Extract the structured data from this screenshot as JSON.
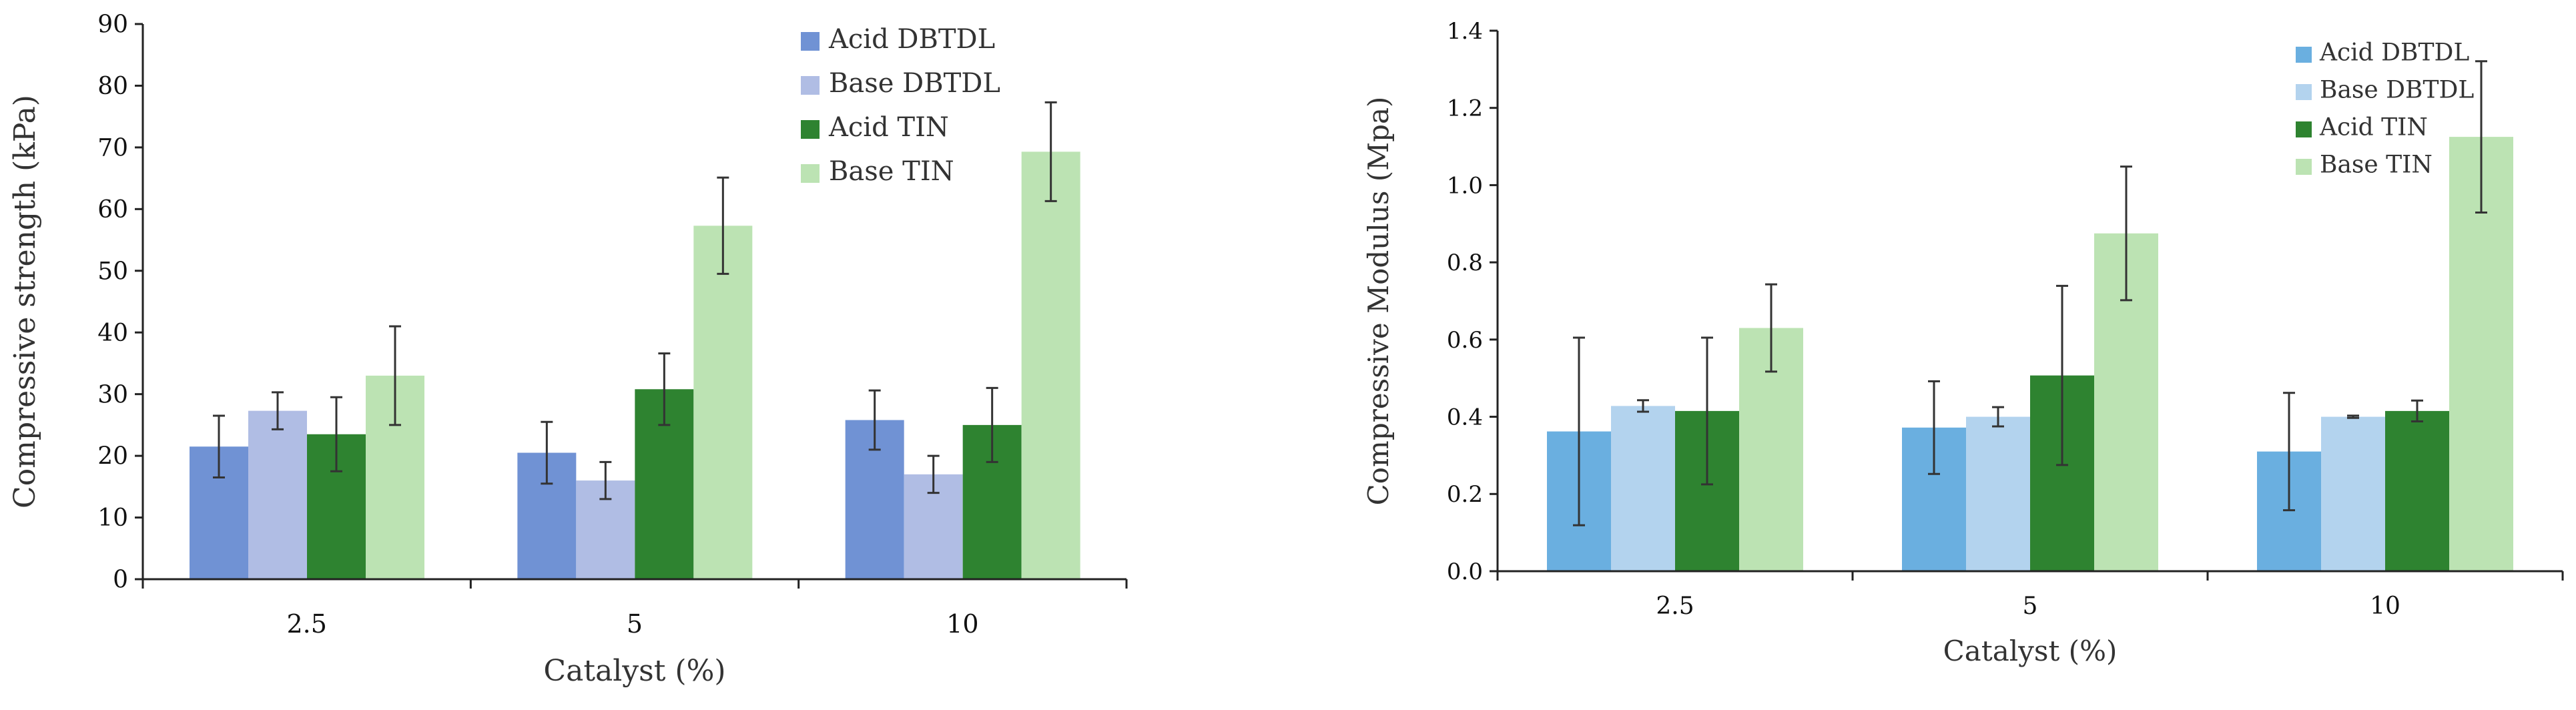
{
  "chart_data": [
    {
      "type": "bar",
      "title": "",
      "xlabel": "Catalyst (%)",
      "ylabel": "Compressive strength (kPa)",
      "categories": [
        "2.5",
        "5",
        "10"
      ],
      "ylim": [
        0,
        90
      ],
      "yticks": [
        0,
        10,
        20,
        30,
        40,
        50,
        60,
        70,
        80,
        90
      ],
      "ytick_labels": [
        "0",
        "10",
        "20",
        "30",
        "40",
        "50",
        "60",
        "70",
        "80",
        "90"
      ],
      "grid": false,
      "legend_position": "top-right",
      "series": [
        {
          "name": "Acid DBTDL",
          "color": "#7092d4",
          "values": [
            21.5,
            20.5,
            25.8
          ],
          "errors": [
            5.0,
            5.0,
            4.8
          ]
        },
        {
          "name": "Base DBTDL",
          "color": "#b0bde4",
          "values": [
            27.3,
            16.0,
            17.0
          ],
          "errors": [
            3.0,
            3.0,
            3.0
          ]
        },
        {
          "name": "Acid TIN",
          "color": "#2e8330",
          "values": [
            23.5,
            30.8,
            25.0
          ],
          "errors": [
            6.0,
            5.8,
            6.0
          ]
        },
        {
          "name": "Base TIN",
          "color": "#bce3b3",
          "values": [
            33.0,
            57.3,
            69.3
          ],
          "errors": [
            8.0,
            7.8,
            8.0
          ]
        }
      ]
    },
    {
      "type": "bar",
      "title": "",
      "xlabel": "Catalyst (%)",
      "ylabel": "Compressive Modulus (Mpa)",
      "categories": [
        "2.5",
        "5",
        "10"
      ],
      "ylim": [
        0,
        1.4
      ],
      "yticks": [
        0,
        0.2,
        0.4,
        0.6,
        0.8,
        1.0,
        1.2,
        1.4
      ],
      "ytick_labels": [
        "0.0",
        "0.2",
        "0.4",
        "0.6",
        "0.8",
        "1.0",
        "1.2",
        "1.4"
      ],
      "grid": false,
      "legend_position": "top-right",
      "series": [
        {
          "name": "Acid DBTDL",
          "color": "#6aafe0",
          "values": [
            0.362,
            0.372,
            0.31
          ],
          "errors": [
            0.243,
            0.12,
            0.152
          ]
        },
        {
          "name": "Base DBTDL",
          "color": "#b3d3ee",
          "values": [
            0.428,
            0.4,
            0.4
          ],
          "errors": [
            0.015,
            0.025,
            0.003
          ]
        },
        {
          "name": "Acid TIN",
          "color": "#2e8330",
          "values": [
            0.415,
            0.507,
            0.415
          ],
          "errors": [
            0.19,
            0.232,
            0.027
          ]
        },
        {
          "name": "Base TIN",
          "color": "#bce3b3",
          "values": [
            0.63,
            0.875,
            1.125
          ],
          "errors": [
            0.113,
            0.173,
            0.196
          ]
        }
      ]
    }
  ]
}
